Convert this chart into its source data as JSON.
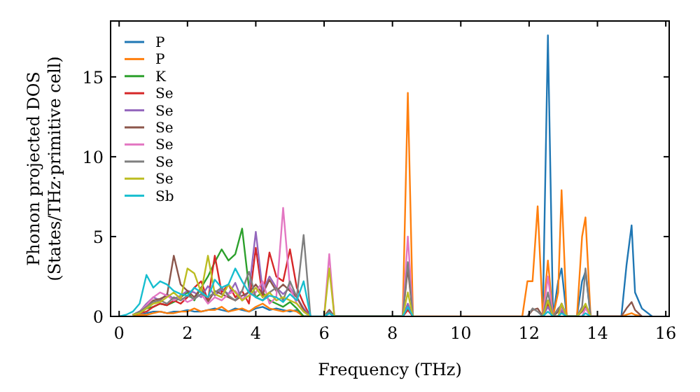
{
  "chart_data": {
    "type": "line",
    "xlabel": "Frequency (THz)",
    "ylabel": "Phonon projected DOS\n(States/THz·primitive cell)",
    "xlim": [
      -0.25,
      16.1
    ],
    "ylim": [
      0,
      18.5
    ],
    "xticks": [
      0,
      2,
      4,
      6,
      8,
      10,
      12,
      14,
      16
    ],
    "yticks": [
      0,
      5,
      10,
      15
    ],
    "grid": false,
    "legend": "top left",
    "marker": "none",
    "line_style": "solid",
    "x": [
      0,
      0.2,
      0.4,
      0.6,
      0.8,
      1,
      1.2,
      1.4,
      1.6,
      1.8,
      2,
      2.2,
      2.4,
      2.6,
      2.8,
      3,
      3.2,
      3.4,
      3.6,
      3.8,
      4,
      4.2,
      4.4,
      4.6,
      4.8,
      5,
      5.2,
      5.4,
      5.6,
      5.8,
      6,
      6.15,
      6.3,
      8.3,
      8.45,
      8.6,
      11.8,
      11.95,
      12.1,
      12.25,
      12.4,
      12.55,
      12.7,
      12.85,
      12.95,
      13.1,
      13.4,
      13.55,
      13.65,
      13.8,
      14.7,
      14.85,
      15,
      15.1,
      15.3,
      15.6
    ],
    "series": [
      {
        "name": "P",
        "color": "#1f77b4",
        "values": [
          null,
          null,
          0.1,
          0.1,
          0.2,
          0.3,
          0.3,
          0.2,
          0.3,
          0.3,
          0.4,
          0.3,
          0.3,
          0.4,
          0.5,
          0.4,
          0.3,
          0.5,
          0.4,
          0.3,
          0.5,
          0.6,
          0.4,
          0.5,
          0.4,
          0.3,
          0.4,
          0,
          0,
          null,
          0,
          0.2,
          0,
          0,
          0.5,
          0,
          null,
          null,
          null,
          null,
          0,
          17.6,
          0,
          2.2,
          3,
          0,
          0,
          2.2,
          2.8,
          0,
          0,
          3.2,
          5.7,
          1.5,
          0.5,
          0
        ]
      },
      {
        "name": "P",
        "color": "#ff7f0e",
        "values": [
          null,
          null,
          0,
          0.1,
          0.1,
          0.2,
          0.3,
          0.2,
          0.2,
          0.3,
          0.3,
          0.5,
          0.3,
          0.4,
          0.4,
          0.6,
          0.3,
          0.4,
          0.5,
          0.3,
          0.6,
          0.8,
          0.5,
          0.4,
          0.3,
          0.4,
          0.3,
          0,
          0,
          null,
          0,
          0.4,
          0,
          0,
          14,
          0,
          0,
          2.2,
          2.2,
          6.9,
          0,
          3.5,
          0,
          1.5,
          7.9,
          0,
          0,
          5,
          6.2,
          0,
          0,
          0.1,
          0.2,
          0.1,
          0,
          null
        ]
      },
      {
        "name": "K",
        "color": "#2ca02c",
        "values": [
          null,
          null,
          0.1,
          0.2,
          0.5,
          0.6,
          0.8,
          0.7,
          0.9,
          1.2,
          1.5,
          1,
          1.8,
          2.5,
          3.4,
          4.2,
          3.5,
          3.9,
          5.5,
          1.8,
          1.2,
          1.5,
          1,
          0.8,
          0.6,
          0.9,
          0.5,
          0,
          0,
          null,
          0,
          0.3,
          0,
          0,
          0.6,
          0,
          null,
          null,
          null,
          null,
          null,
          null,
          null,
          null,
          null,
          null,
          null,
          null,
          null,
          null,
          null,
          null,
          null,
          null,
          null,
          null
        ]
      },
      {
        "name": "Se",
        "color": "#d62728",
        "values": [
          null,
          null,
          0.1,
          0.2,
          0.3,
          0.6,
          0.8,
          0.7,
          1,
          0.8,
          1.2,
          1.8,
          2.2,
          1,
          3.8,
          1.5,
          2,
          1.2,
          1.6,
          0.8,
          4.3,
          1.2,
          4,
          2.5,
          2.2,
          4.2,
          1.8,
          0.8,
          0,
          null,
          0,
          0.3,
          0,
          0,
          0.4,
          0,
          null,
          null,
          null,
          null,
          0,
          0.8,
          0,
          0,
          0.3,
          0,
          null,
          null,
          null,
          null,
          null,
          null,
          null,
          null,
          null,
          null
        ]
      },
      {
        "name": "Se",
        "color": "#9467bd",
        "values": [
          null,
          null,
          0.1,
          0.3,
          0.8,
          1.2,
          1,
          1.4,
          1.1,
          1.3,
          1.6,
          1.5,
          1.2,
          1.9,
          1.3,
          1.7,
          1.4,
          2.1,
          1,
          1.6,
          5.3,
          1.6,
          2.5,
          1.8,
          1.4,
          1.8,
          1.2,
          0.5,
          0,
          null,
          0,
          0.4,
          0,
          0,
          0.8,
          0,
          null,
          null,
          null,
          null,
          0,
          0.6,
          0,
          0,
          0.4,
          0,
          null,
          null,
          null,
          null,
          null,
          null,
          null,
          null,
          null,
          null
        ]
      },
      {
        "name": "Se",
        "color": "#8c564b",
        "values": [
          null,
          null,
          0.1,
          0.3,
          0.6,
          1,
          1.1,
          1.3,
          3.8,
          2,
          1.6,
          1.2,
          1.8,
          0.9,
          1.6,
          1.4,
          1.2,
          1,
          1.3,
          1.5,
          2,
          1.4,
          2.3,
          1.6,
          2,
          1.6,
          1.2,
          0.4,
          0,
          null,
          0,
          0.4,
          0,
          0,
          3,
          0,
          null,
          0,
          0.4,
          0.5,
          0,
          1,
          0,
          0.3,
          0.8,
          0,
          0,
          0.3,
          0.6,
          0,
          0,
          0.5,
          0.9,
          0.4,
          0,
          null
        ]
      },
      {
        "name": "Se",
        "color": "#e377c2",
        "values": [
          null,
          null,
          0.1,
          0.3,
          0.7,
          1.2,
          1.5,
          1.3,
          1,
          1.2,
          0.9,
          1.1,
          1.4,
          0.8,
          1.2,
          1,
          1.4,
          1.6,
          1.1,
          1.3,
          1.5,
          2.2,
          0.8,
          1.2,
          6.8,
          1.8,
          0.8,
          0.3,
          0,
          null,
          0,
          3.9,
          0,
          0,
          5,
          0,
          null,
          null,
          null,
          null,
          0,
          2.5,
          0,
          0,
          0.6,
          0,
          null,
          0,
          0.5,
          0,
          null,
          null,
          null,
          null,
          null,
          null
        ]
      },
      {
        "name": "Se",
        "color": "#7f7f7f",
        "values": [
          null,
          null,
          0.1,
          0.3,
          0.6,
          0.9,
          1,
          0.8,
          1.2,
          1,
          1.3,
          1.1,
          1.4,
          1.2,
          1.5,
          1.8,
          1.3,
          1,
          1.6,
          2.8,
          1.2,
          1,
          1.5,
          1.8,
          1,
          2.2,
          1.2,
          5.1,
          0,
          null,
          0,
          0.3,
          0,
          0,
          3.4,
          0,
          null,
          0,
          0.5,
          0.3,
          0,
          1.5,
          0,
          0.5,
          0.7,
          0,
          0,
          0.6,
          3,
          0,
          null,
          null,
          null,
          null,
          null,
          null
        ]
      },
      {
        "name": "Se",
        "color": "#bcbd22",
        "values": [
          null,
          null,
          0.1,
          0.2,
          0.5,
          0.8,
          0.9,
          1.2,
          1.5,
          1.1,
          3,
          2.7,
          1.5,
          3.8,
          1.4,
          1.2,
          2,
          1.5,
          1,
          1.3,
          1.8,
          1.2,
          1.5,
          1,
          1.2,
          1,
          0.8,
          0.3,
          0,
          null,
          0,
          3,
          0,
          0,
          1.5,
          0,
          null,
          null,
          null,
          null,
          0,
          1,
          0,
          0,
          0.8,
          0,
          0,
          0.4,
          0.8,
          0,
          null,
          null,
          null,
          null,
          null,
          null
        ]
      },
      {
        "name": "Sb",
        "color": "#17becf",
        "values": [
          0,
          0.1,
          0.3,
          0.8,
          2.6,
          1.8,
          2.2,
          2,
          1.6,
          1.4,
          1.3,
          1.8,
          1.5,
          1.2,
          2.3,
          1.8,
          2,
          3,
          2.2,
          1.5,
          1.2,
          1,
          1.3,
          1.2,
          0.9,
          1.4,
          1,
          2.2,
          0,
          0,
          0,
          0.2,
          0,
          0,
          0.6,
          0,
          null,
          null,
          null,
          0,
          0,
          0.3,
          0,
          0,
          0.2,
          0,
          0,
          0,
          0.2,
          0,
          null,
          null,
          null,
          null,
          null,
          null
        ]
      }
    ]
  }
}
